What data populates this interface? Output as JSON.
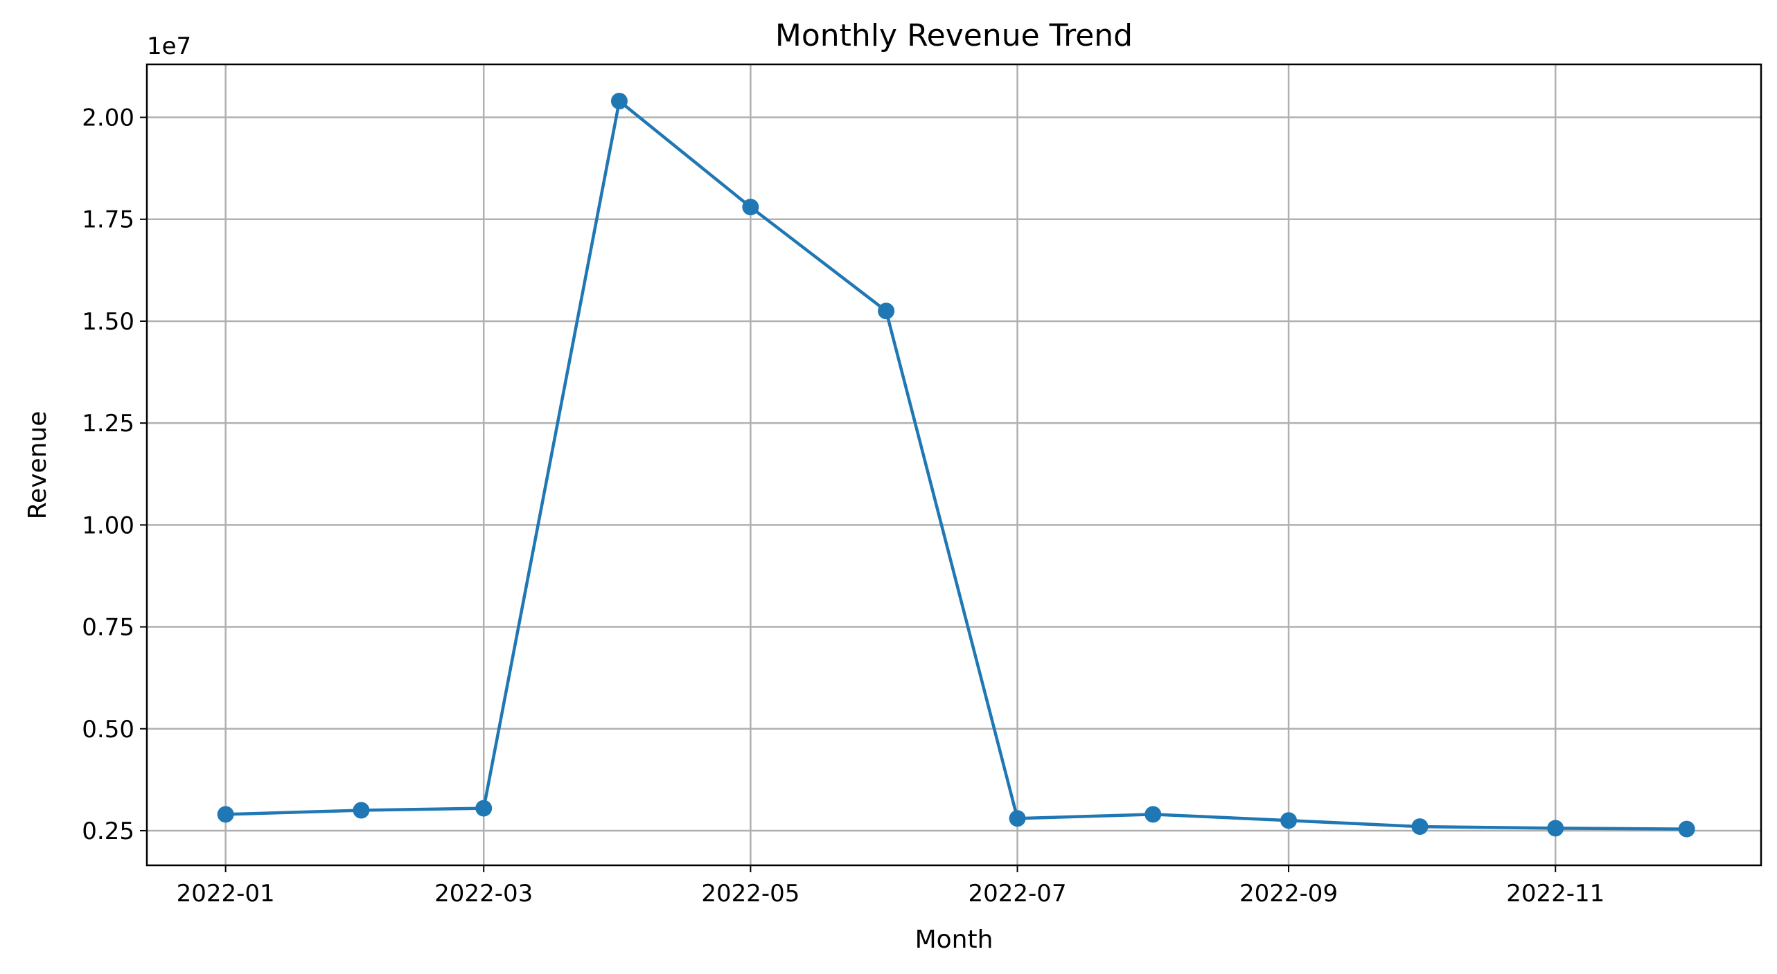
{
  "chart_data": {
    "type": "line",
    "title": "Monthly Revenue Trend",
    "xlabel": "Month",
    "ylabel": "Revenue",
    "y_offset_label": "1e7",
    "x": [
      "2022-01",
      "2022-02",
      "2022-03",
      "2022-04",
      "2022-05",
      "2022-06",
      "2022-07",
      "2022-08",
      "2022-09",
      "2022-10",
      "2022-11",
      "2022-12"
    ],
    "series": [
      {
        "values": [
          2900000,
          3000000,
          3050000,
          20400000,
          17800000,
          15250000,
          2800000,
          2900000,
          2750000,
          2600000,
          2560000,
          2540000
        ],
        "color": "#1f77b4",
        "marker": "circle"
      }
    ],
    "x_ticks": [
      "2022-01",
      "2022-03",
      "2022-05",
      "2022-07",
      "2022-09",
      "2022-11"
    ],
    "y_ticks": [
      2500000,
      5000000,
      7500000,
      10000000,
      12500000,
      15000000,
      17500000,
      20000000
    ],
    "y_tick_labels": [
      "0.25",
      "0.50",
      "0.75",
      "1.00",
      "1.25",
      "1.50",
      "1.75",
      "2.00"
    ],
    "xlim": [
      "2021-12-14",
      "2022-12-18"
    ],
    "ylim": [
      1650000,
      21300000
    ],
    "grid": true,
    "legend": false
  }
}
